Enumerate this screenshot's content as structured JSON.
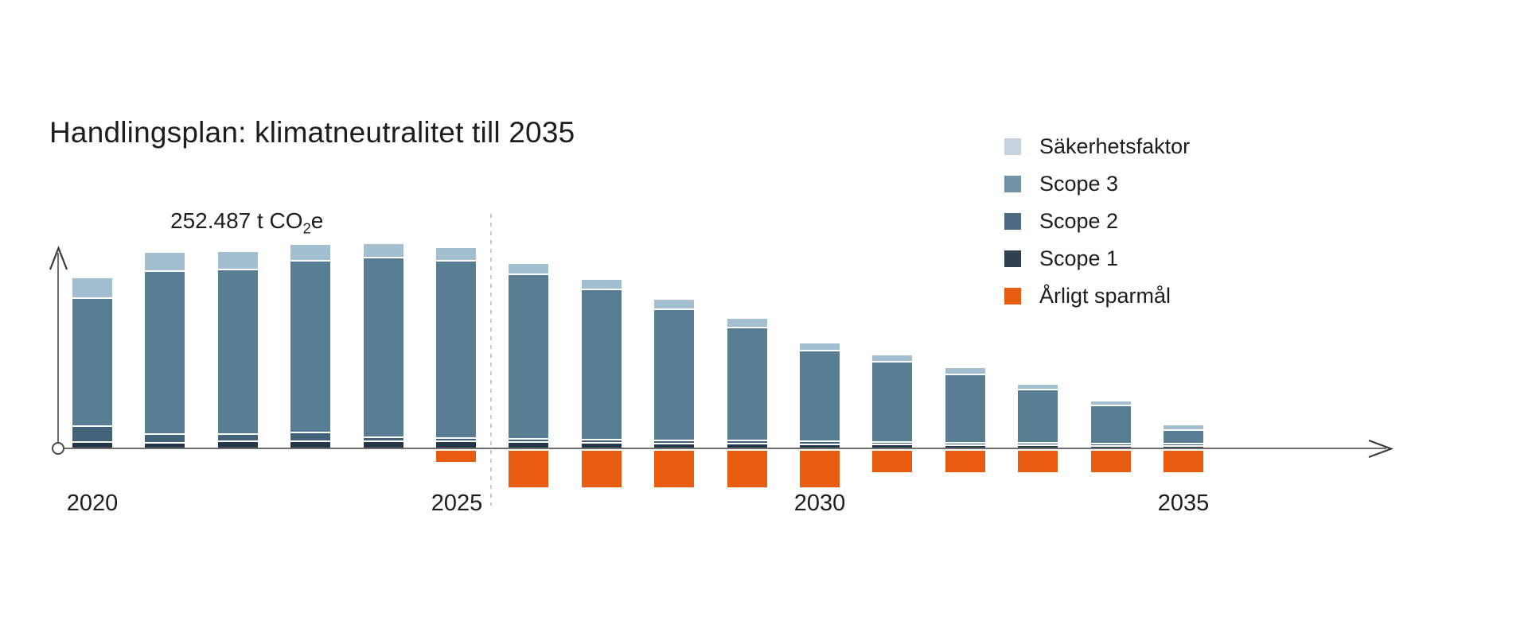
{
  "title": "Handlingsplan: klimatneutralitet till 2035",
  "annotation": {
    "full": "252.487 t CO2e",
    "prefix": "252.487 t CO",
    "subscript": "2",
    "suffix": "e"
  },
  "legend": {
    "items": [
      {
        "label": "Säkerhetsfaktor",
        "color": "#c5d2dc"
      },
      {
        "label": "Scope 3",
        "color": "#7193a6"
      },
      {
        "label": "Scope 2",
        "color": "#4d6b80"
      },
      {
        "label": "Scope 1",
        "color": "#2e4150"
      },
      {
        "label": "Årligt sparmål",
        "color": "#e85c0f"
      }
    ]
  },
  "axis": {
    "x_labels": [
      "2020",
      "2025",
      "2030",
      "2035"
    ],
    "divider_after_year": 2025
  },
  "colors": {
    "axis_line": "#6e6e6e",
    "arrow": "#3a3a3a",
    "divider_dashed": "#c8c8c8",
    "text": "#1d1d1d"
  },
  "chart_data": {
    "type": "bar",
    "stacked": true,
    "title": "Handlingsplan: klimatneutralitet till 2035",
    "x": [
      2020,
      2021,
      2022,
      2023,
      2024,
      2025,
      2026,
      2027,
      2028,
      2029,
      2030,
      2031,
      2032,
      2033,
      2034,
      2035
    ],
    "unit_note": "relative units (pixel heights read from chart; no numeric y-axis). Annotation anchors the 2023 peak stack ≈ 252.487 t CO2e. 'Årligt sparmål' is drawn below the x-axis.",
    "legend_position": "top-right",
    "grid": false,
    "series": [
      {
        "key": "saekerhetsfaktor",
        "name": "Säkerhetsfaktor",
        "color": "#a3bfcf",
        "below_axis": false,
        "values": [
          24,
          22,
          21,
          19,
          16,
          15,
          12,
          11,
          11,
          10,
          8,
          7,
          7,
          5,
          4,
          5
        ]
      },
      {
        "key": "scope3",
        "name": "Scope 3",
        "color": "#587e93",
        "below_axis": false,
        "values": [
          159,
          203,
          205,
          214,
          224,
          221,
          205,
          187,
          163,
          140,
          112,
          99,
          84,
          65,
          46,
          15
        ]
      },
      {
        "key": "scope2",
        "name": "Scope 2",
        "color": "#41647a",
        "below_axis": false,
        "values": [
          18,
          9,
          7,
          9,
          3,
          2,
          2,
          2,
          2,
          2,
          2,
          1,
          1,
          1,
          1,
          1
        ]
      },
      {
        "key": "scope1",
        "name": "Scope 1",
        "color": "#24384a",
        "below_axis": false,
        "values": [
          7,
          6,
          8,
          8,
          8,
          8,
          7,
          6,
          5,
          5,
          4,
          4,
          3,
          3,
          2,
          2
        ]
      },
      {
        "key": "sparmal",
        "name": "Årligt sparmål",
        "color": "#e85c0f",
        "below_axis": true,
        "values": [
          0,
          0,
          0,
          0,
          0,
          14,
          46,
          46,
          46,
          46,
          46,
          27,
          27,
          27,
          27,
          27
        ]
      }
    ]
  }
}
